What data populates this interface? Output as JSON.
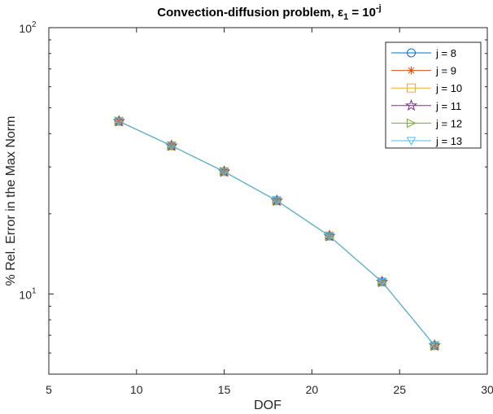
{
  "chart_data": {
    "type": "line",
    "title": {
      "prefix": "Convection-diffusion problem, ",
      "epsilon_symbol": "ε",
      "epsilon_subscript": "1",
      "equals_base": " = 10",
      "exponent": "-j"
    },
    "xlabel": "DOF",
    "ylabel": "% Rel. Error in the Max Norm",
    "xlim": [
      5,
      30
    ],
    "ylim": [
      5,
      100
    ],
    "yscale": "log",
    "xticks": [
      {
        "value": 5,
        "label": "5"
      },
      {
        "value": 10,
        "label": "10"
      },
      {
        "value": 15,
        "label": "15"
      },
      {
        "value": 20,
        "label": "20"
      },
      {
        "value": 25,
        "label": "25"
      },
      {
        "value": 30,
        "label": "30"
      }
    ],
    "yticks": [
      {
        "value": 10,
        "base": "10",
        "exp": "1"
      },
      {
        "value": 100,
        "base": "10",
        "exp": "2"
      }
    ],
    "x": [
      9,
      12,
      15,
      18,
      21,
      24,
      27
    ],
    "legend_position": "top-right",
    "series": [
      {
        "name": "j = 8",
        "color": "#0072BD",
        "marker": "circle",
        "values": [
          44.5,
          36.0,
          28.8,
          22.4,
          16.5,
          11.1,
          6.4
        ]
      },
      {
        "name": "j = 9",
        "color": "#D95319",
        "marker": "asterisk",
        "values": [
          44.5,
          36.0,
          28.8,
          22.4,
          16.5,
          11.1,
          6.4
        ]
      },
      {
        "name": "j = 10",
        "color": "#EDB120",
        "marker": "square",
        "values": [
          44.5,
          36.0,
          28.8,
          22.4,
          16.5,
          11.1,
          6.4
        ]
      },
      {
        "name": "j = 11",
        "color": "#7E2F8E",
        "marker": "pentagram",
        "values": [
          44.5,
          36.0,
          28.8,
          22.4,
          16.5,
          11.1,
          6.4
        ]
      },
      {
        "name": "j = 12",
        "color": "#77AC30",
        "marker": "triangle-right",
        "values": [
          44.5,
          36.0,
          28.8,
          22.4,
          16.5,
          11.1,
          6.4
        ]
      },
      {
        "name": "j = 13",
        "color": "#4DBEEE",
        "marker": "triangle-down",
        "values": [
          44.5,
          36.0,
          28.8,
          22.4,
          16.5,
          11.1,
          6.4
        ]
      }
    ]
  }
}
